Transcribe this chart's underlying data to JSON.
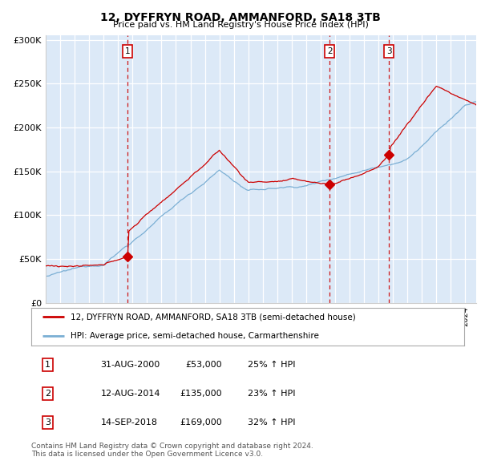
{
  "title": "12, DYFFRYN ROAD, AMMANFORD, SA18 3TB",
  "subtitle": "Price paid vs. HM Land Registry's House Price Index (HPI)",
  "plot_bg_color": "#dce9f7",
  "red_line_label": "12, DYFFRYN ROAD, AMMANFORD, SA18 3TB (semi-detached house)",
  "blue_line_label": "HPI: Average price, semi-detached house, Carmarthenshire",
  "footer_line1": "Contains HM Land Registry data © Crown copyright and database right 2024.",
  "footer_line2": "This data is licensed under the Open Government Licence v3.0.",
  "sales": [
    {
      "label": "1",
      "date": "31-AUG-2000",
      "price": "£53,000",
      "pct": "25%",
      "x_year": 2000.67
    },
    {
      "label": "2",
      "date": "12-AUG-2014",
      "price": "£135,000",
      "pct": "23%",
      "x_year": 2014.62
    },
    {
      "label": "3",
      "date": "14-SEP-2018",
      "price": "£169,000",
      "pct": "32%",
      "x_year": 2018.71
    }
  ],
  "sale_prices": [
    53000,
    135000,
    169000
  ],
  "ylim": [
    0,
    305000
  ],
  "xlim_start": 1995.0,
  "xlim_end": 2024.75,
  "yticks": [
    0,
    50000,
    100000,
    150000,
    200000,
    250000,
    300000
  ],
  "ytick_labels": [
    "£0",
    "£50K",
    "£100K",
    "£150K",
    "£200K",
    "£250K",
    "£300K"
  ],
  "red_color": "#cc0000",
  "blue_color": "#7bafd4",
  "marker_color": "#cc0000",
  "vline_color": "#cc0000",
  "label_box_edgecolor": "#cc0000",
  "grid_color": "#ffffff",
  "spine_color": "#cccccc"
}
